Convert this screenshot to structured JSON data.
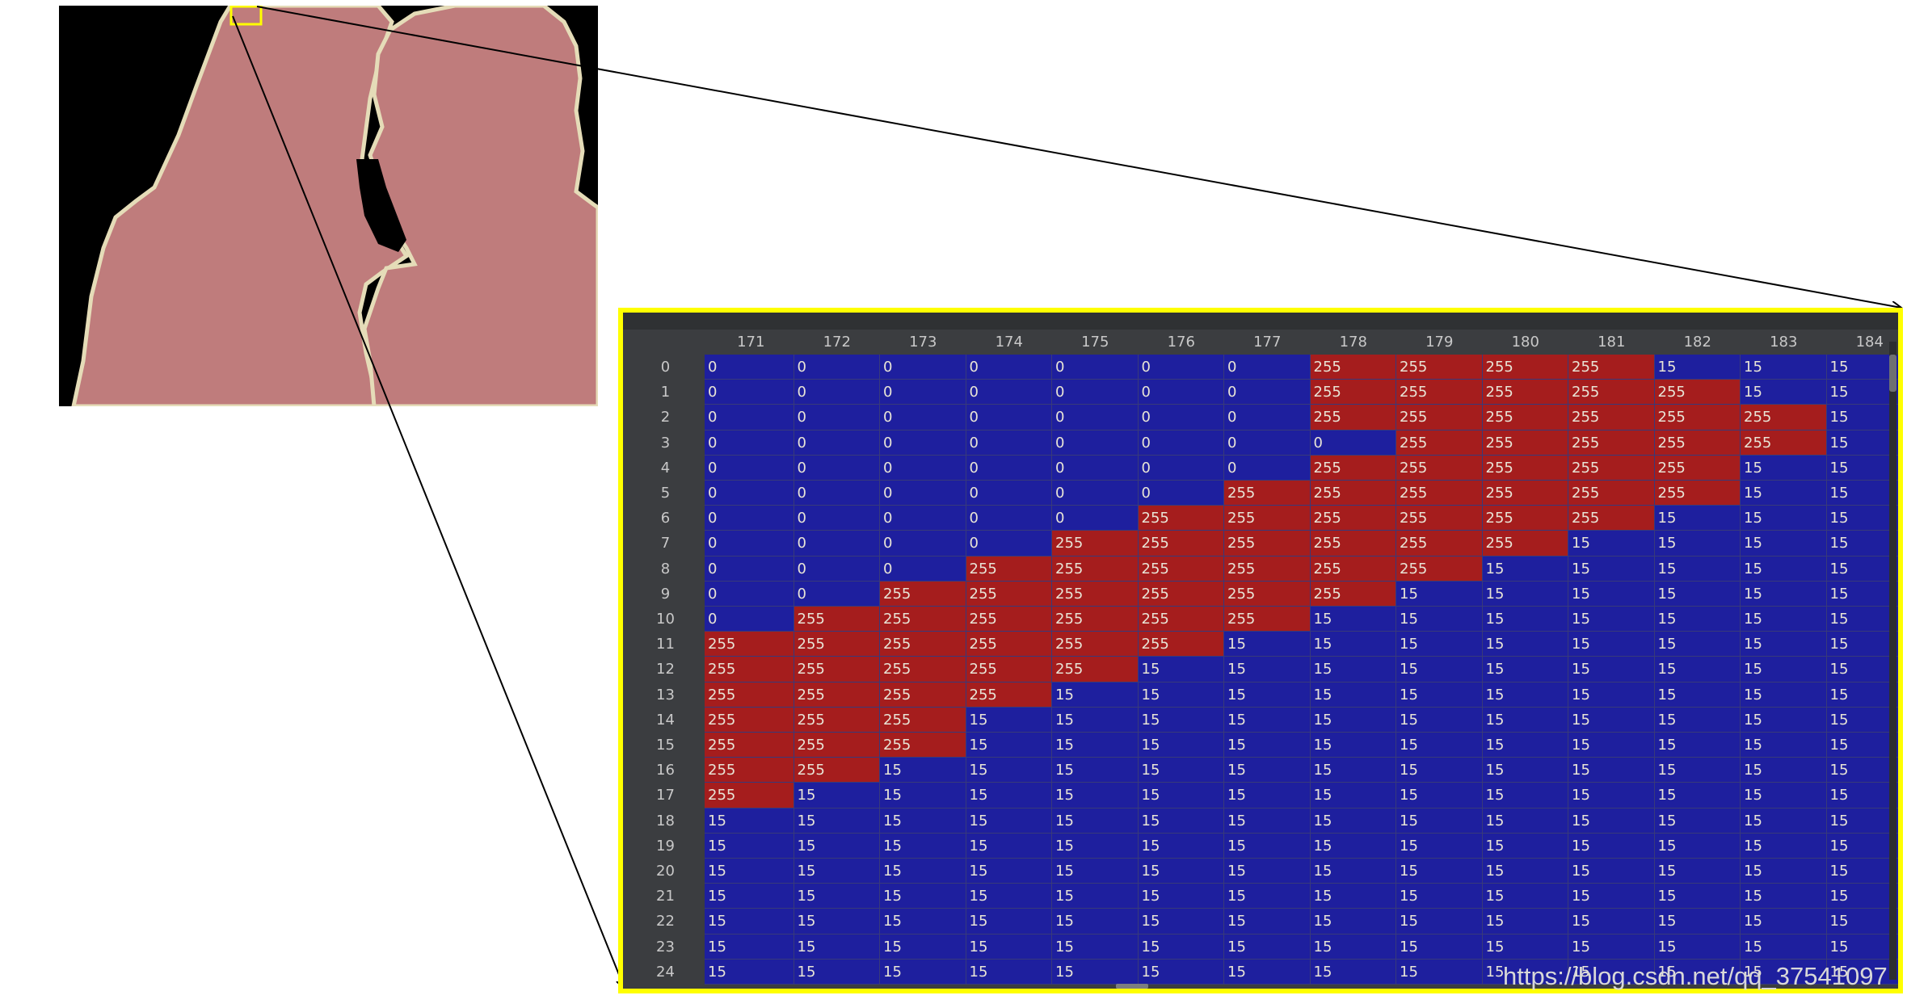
{
  "column_headers": [
    "171",
    "172",
    "173",
    "174",
    "175",
    "176",
    "177",
    "178",
    "179",
    "180",
    "181",
    "182",
    "183",
    "184"
  ],
  "row_headers": [
    "0",
    "1",
    "2",
    "3",
    "4",
    "5",
    "6",
    "7",
    "8",
    "9",
    "10",
    "11",
    "12",
    "13",
    "14",
    "15",
    "16",
    "17",
    "18",
    "19",
    "20",
    "21",
    "22",
    "23",
    "24"
  ],
  "rows": [
    [
      "0",
      "0",
      "0",
      "0",
      "0",
      "0",
      "0",
      "255",
      "255",
      "255",
      "255",
      "15",
      "15",
      "15"
    ],
    [
      "0",
      "0",
      "0",
      "0",
      "0",
      "0",
      "0",
      "255",
      "255",
      "255",
      "255",
      "255",
      "15",
      "15"
    ],
    [
      "0",
      "0",
      "0",
      "0",
      "0",
      "0",
      "0",
      "255",
      "255",
      "255",
      "255",
      "255",
      "255",
      "15"
    ],
    [
      "0",
      "0",
      "0",
      "0",
      "0",
      "0",
      "0",
      "0",
      "255",
      "255",
      "255",
      "255",
      "255",
      "15"
    ],
    [
      "0",
      "0",
      "0",
      "0",
      "0",
      "0",
      "0",
      "255",
      "255",
      "255",
      "255",
      "255",
      "15",
      "15"
    ],
    [
      "0",
      "0",
      "0",
      "0",
      "0",
      "0",
      "255",
      "255",
      "255",
      "255",
      "255",
      "255",
      "15",
      "15"
    ],
    [
      "0",
      "0",
      "0",
      "0",
      "0",
      "255",
      "255",
      "255",
      "255",
      "255",
      "255",
      "15",
      "15",
      "15"
    ],
    [
      "0",
      "0",
      "0",
      "0",
      "255",
      "255",
      "255",
      "255",
      "255",
      "255",
      "15",
      "15",
      "15",
      "15"
    ],
    [
      "0",
      "0",
      "0",
      "255",
      "255",
      "255",
      "255",
      "255",
      "255",
      "15",
      "15",
      "15",
      "15",
      "15"
    ],
    [
      "0",
      "0",
      "255",
      "255",
      "255",
      "255",
      "255",
      "255",
      "15",
      "15",
      "15",
      "15",
      "15",
      "15"
    ],
    [
      "0",
      "255",
      "255",
      "255",
      "255",
      "255",
      "255",
      "15",
      "15",
      "15",
      "15",
      "15",
      "15",
      "15"
    ],
    [
      "255",
      "255",
      "255",
      "255",
      "255",
      "255",
      "15",
      "15",
      "15",
      "15",
      "15",
      "15",
      "15",
      "15"
    ],
    [
      "255",
      "255",
      "255",
      "255",
      "255",
      "15",
      "15",
      "15",
      "15",
      "15",
      "15",
      "15",
      "15",
      "15"
    ],
    [
      "255",
      "255",
      "255",
      "255",
      "15",
      "15",
      "15",
      "15",
      "15",
      "15",
      "15",
      "15",
      "15",
      "15"
    ],
    [
      "255",
      "255",
      "255",
      "15",
      "15",
      "15",
      "15",
      "15",
      "15",
      "15",
      "15",
      "15",
      "15",
      "15"
    ],
    [
      "255",
      "255",
      "255",
      "15",
      "15",
      "15",
      "15",
      "15",
      "15",
      "15",
      "15",
      "15",
      "15",
      "15"
    ],
    [
      "255",
      "255",
      "15",
      "15",
      "15",
      "15",
      "15",
      "15",
      "15",
      "15",
      "15",
      "15",
      "15",
      "15"
    ],
    [
      "255",
      "15",
      "15",
      "15",
      "15",
      "15",
      "15",
      "15",
      "15",
      "15",
      "15",
      "15",
      "15",
      "15"
    ],
    [
      "15",
      "15",
      "15",
      "15",
      "15",
      "15",
      "15",
      "15",
      "15",
      "15",
      "15",
      "15",
      "15",
      "15"
    ],
    [
      "15",
      "15",
      "15",
      "15",
      "15",
      "15",
      "15",
      "15",
      "15",
      "15",
      "15",
      "15",
      "15",
      "15"
    ],
    [
      "15",
      "15",
      "15",
      "15",
      "15",
      "15",
      "15",
      "15",
      "15",
      "15",
      "15",
      "15",
      "15",
      "15"
    ],
    [
      "15",
      "15",
      "15",
      "15",
      "15",
      "15",
      "15",
      "15",
      "15",
      "15",
      "15",
      "15",
      "15",
      "15"
    ],
    [
      "15",
      "15",
      "15",
      "15",
      "15",
      "15",
      "15",
      "15",
      "15",
      "15",
      "15",
      "15",
      "15",
      "15"
    ],
    [
      "15",
      "15",
      "15",
      "15",
      "15",
      "15",
      "15",
      "15",
      "15",
      "15",
      "15",
      "15",
      "15",
      "15"
    ],
    [
      "15",
      "15",
      "15",
      "15",
      "15",
      "15",
      "15",
      "15",
      "15",
      "15",
      "15",
      "15",
      "15",
      "15"
    ]
  ],
  "colors": {
    "value_255": "#a51d1d",
    "value_other": "#1e1f9e",
    "highlight_box": "#ffff00",
    "silhouette": "#bf7c7c",
    "silhouette_edge": "#e5dcb8",
    "background_mask": "#000000"
  },
  "watermark": "https://blog.csdn.net/qq_37541097"
}
